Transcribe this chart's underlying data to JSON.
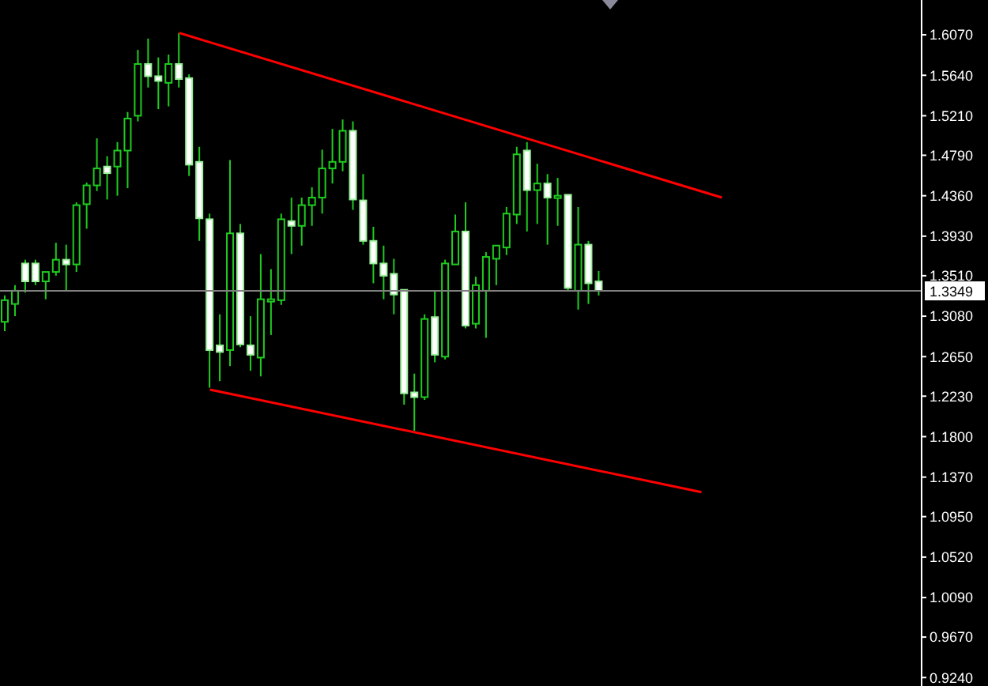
{
  "chart_data": {
    "type": "candlestick",
    "categories": [
      null,
      null,
      null,
      null,
      null,
      null,
      null,
      null,
      null,
      null,
      null,
      null,
      null,
      null,
      null,
      null,
      null,
      null,
      null,
      null,
      null,
      null,
      null,
      null,
      null,
      null,
      null,
      null,
      null,
      null,
      null,
      null,
      null,
      null,
      null,
      null,
      null,
      null,
      null,
      null,
      null,
      null,
      null,
      null,
      null,
      null,
      null,
      null,
      null,
      null,
      null,
      null,
      null,
      null,
      null,
      null,
      null,
      null,
      null,
      null,
      null,
      null,
      null,
      null,
      null,
      null,
      null,
      null,
      null,
      null,
      null,
      null,
      null,
      null,
      null,
      null,
      null,
      null,
      null,
      null,
      null,
      null,
      null,
      null,
      null,
      null,
      null,
      null,
      null,
      null
    ],
    "ohlc": [
      [
        1.302,
        1.33,
        1.292,
        1.325
      ],
      [
        1.321,
        1.341,
        1.308,
        1.335
      ],
      [
        1.364,
        1.368,
        1.333,
        1.345
      ],
      [
        1.364,
        1.368,
        1.341,
        1.345
      ],
      [
        1.345,
        1.355,
        1.326,
        1.355
      ],
      [
        1.355,
        1.386,
        1.351,
        1.368
      ],
      [
        1.368,
        1.384,
        1.335,
        1.363
      ],
      [
        1.363,
        1.429,
        1.355,
        1.426
      ],
      [
        1.427,
        1.45,
        1.401,
        1.447
      ],
      [
        1.447,
        1.497,
        1.441,
        1.465
      ],
      [
        1.467,
        1.478,
        1.432,
        1.46
      ],
      [
        1.467,
        1.493,
        1.436,
        1.484
      ],
      [
        1.484,
        1.525,
        1.444,
        1.518
      ],
      [
        1.521,
        1.591,
        1.515,
        1.576
      ],
      [
        1.576,
        1.603,
        1.551,
        1.563
      ],
      [
        1.563,
        1.583,
        1.528,
        1.558
      ],
      [
        1.556,
        1.586,
        1.531,
        1.576
      ],
      [
        1.576,
        1.609,
        1.551,
        1.56
      ],
      [
        1.561,
        1.565,
        1.457,
        1.469
      ],
      [
        1.472,
        1.488,
        1.388,
        1.412
      ],
      [
        1.411,
        1.417,
        1.232,
        1.272
      ],
      [
        1.277,
        1.31,
        1.239,
        1.27
      ],
      [
        1.272,
        1.474,
        1.255,
        1.396
      ],
      [
        1.396,
        1.406,
        1.275,
        1.278
      ],
      [
        1.277,
        1.308,
        1.25,
        1.267
      ],
      [
        1.264,
        1.374,
        1.244,
        1.326
      ],
      [
        1.326,
        1.358,
        1.288,
        1.326
      ],
      [
        1.325,
        1.417,
        1.32,
        1.411
      ],
      [
        1.409,
        1.434,
        1.374,
        1.404
      ],
      [
        1.404,
        1.434,
        1.383,
        1.426
      ],
      [
        1.426,
        1.445,
        1.404,
        1.434
      ],
      [
        1.434,
        1.485,
        1.417,
        1.465
      ],
      [
        1.465,
        1.507,
        1.449,
        1.472
      ],
      [
        1.472,
        1.517,
        1.462,
        1.505
      ],
      [
        1.505,
        1.515,
        1.421,
        1.432
      ],
      [
        1.431,
        1.459,
        1.384,
        1.388
      ],
      [
        1.388,
        1.403,
        1.343,
        1.364
      ],
      [
        1.364,
        1.383,
        1.326,
        1.351
      ],
      [
        1.353,
        1.369,
        1.31,
        1.331
      ],
      [
        1.336,
        1.336,
        1.214,
        1.226
      ],
      [
        1.227,
        1.247,
        1.186,
        1.222
      ],
      [
        1.222,
        1.31,
        1.219,
        1.305
      ],
      [
        1.307,
        1.335,
        1.259,
        1.267
      ],
      [
        1.265,
        1.368,
        1.262,
        1.364
      ],
      [
        1.363,
        1.416,
        1.363,
        1.398
      ],
      [
        1.398,
        1.429,
        1.295,
        1.298
      ],
      [
        1.3,
        1.35,
        1.295,
        1.341
      ],
      [
        1.335,
        1.376,
        1.285,
        1.371
      ],
      [
        1.369,
        1.383,
        1.341,
        1.383
      ],
      [
        1.381,
        1.424,
        1.373,
        1.417
      ],
      [
        1.416,
        1.488,
        1.406,
        1.48
      ],
      [
        1.484,
        1.493,
        1.398,
        1.442
      ],
      [
        1.442,
        1.47,
        1.406,
        1.449
      ],
      [
        1.449,
        1.459,
        1.384,
        1.434
      ],
      [
        1.436,
        1.455,
        1.404,
        1.436
      ],
      [
        1.437,
        1.437,
        1.335,
        1.338
      ],
      [
        1.335,
        1.424,
        1.315,
        1.384
      ],
      [
        1.384,
        1.388,
        1.321,
        1.343
      ],
      [
        1.345,
        1.356,
        1.33,
        1.335
      ],
      null,
      null,
      null,
      null,
      null,
      null,
      null,
      null,
      null,
      null,
      null,
      null,
      null,
      null,
      null,
      null,
      null,
      null,
      null,
      null,
      null,
      null,
      null,
      null,
      null,
      null,
      null,
      null,
      null,
      null,
      null
    ],
    "series": [
      {
        "type": "line",
        "color": "#ff0000",
        "values": [
          null,
          null,
          null,
          null,
          null,
          null,
          null,
          null,
          null,
          null,
          null,
          null,
          null,
          null,
          null,
          null,
          null,
          1.609,
          null,
          null,
          null,
          null,
          null,
          null,
          null,
          null,
          null,
          null,
          null,
          null,
          null,
          null,
          null,
          null,
          null,
          null,
          null,
          null,
          null,
          null,
          null,
          null,
          null,
          null,
          null,
          null,
          null,
          null,
          null,
          null,
          null,
          null,
          null,
          null,
          null,
          null,
          null,
          null,
          null,
          null,
          null,
          null,
          null,
          null,
          null,
          null,
          null,
          null,
          null,
          null,
          1.434,
          null,
          null,
          null,
          null,
          null,
          null,
          null,
          null,
          null,
          null,
          null,
          null,
          null,
          null,
          null,
          null,
          null,
          null,
          null
        ]
      },
      {
        "type": "line",
        "color": "#ff0000",
        "values": [
          null,
          null,
          null,
          null,
          null,
          null,
          null,
          null,
          null,
          null,
          null,
          null,
          null,
          null,
          null,
          null,
          null,
          null,
          null,
          null,
          1.23,
          null,
          null,
          null,
          null,
          null,
          null,
          null,
          null,
          null,
          null,
          null,
          null,
          null,
          null,
          null,
          null,
          null,
          null,
          null,
          null,
          null,
          null,
          null,
          null,
          null,
          null,
          null,
          null,
          null,
          null,
          null,
          null,
          null,
          null,
          null,
          null,
          null,
          null,
          null,
          null,
          null,
          null,
          null,
          null,
          null,
          null,
          null,
          1.121,
          null,
          null,
          null,
          null,
          null,
          null,
          null,
          null,
          null,
          null,
          null,
          null,
          null,
          null,
          null,
          null,
          null,
          null,
          null,
          null,
          null
        ]
      }
    ],
    "ylim": [
      0.915,
      1.644
    ],
    "yticks": [
      {
        "value": 1.607,
        "label": "1.6070"
      },
      {
        "value": 1.564,
        "label": "1.5640"
      },
      {
        "value": 1.521,
        "label": "1.5210"
      },
      {
        "value": 1.479,
        "label": "1.4790"
      },
      {
        "value": 1.436,
        "label": "1.4360"
      },
      {
        "value": 1.393,
        "label": "1.3930"
      },
      {
        "value": 1.351,
        "label": "1.3510"
      },
      {
        "value": 1.308,
        "label": "1.3080"
      },
      {
        "value": 1.265,
        "label": "1.2650"
      },
      {
        "value": 1.223,
        "label": "1.2230"
      },
      {
        "value": 1.18,
        "label": "1.1800"
      },
      {
        "value": 1.137,
        "label": "1.1370"
      },
      {
        "value": 1.095,
        "label": "1.0950"
      },
      {
        "value": 1.052,
        "label": "1.0520"
      },
      {
        "value": 1.009,
        "label": "1.0090"
      },
      {
        "value": 0.967,
        "label": "0.9670"
      },
      {
        "value": 0.924,
        "label": "0.9240"
      }
    ],
    "tick_labels": "y",
    "ref_lines": [
      {
        "axis": "y",
        "value": 1.3349,
        "label": "1.3349",
        "color": "#808080"
      }
    ]
  }
}
